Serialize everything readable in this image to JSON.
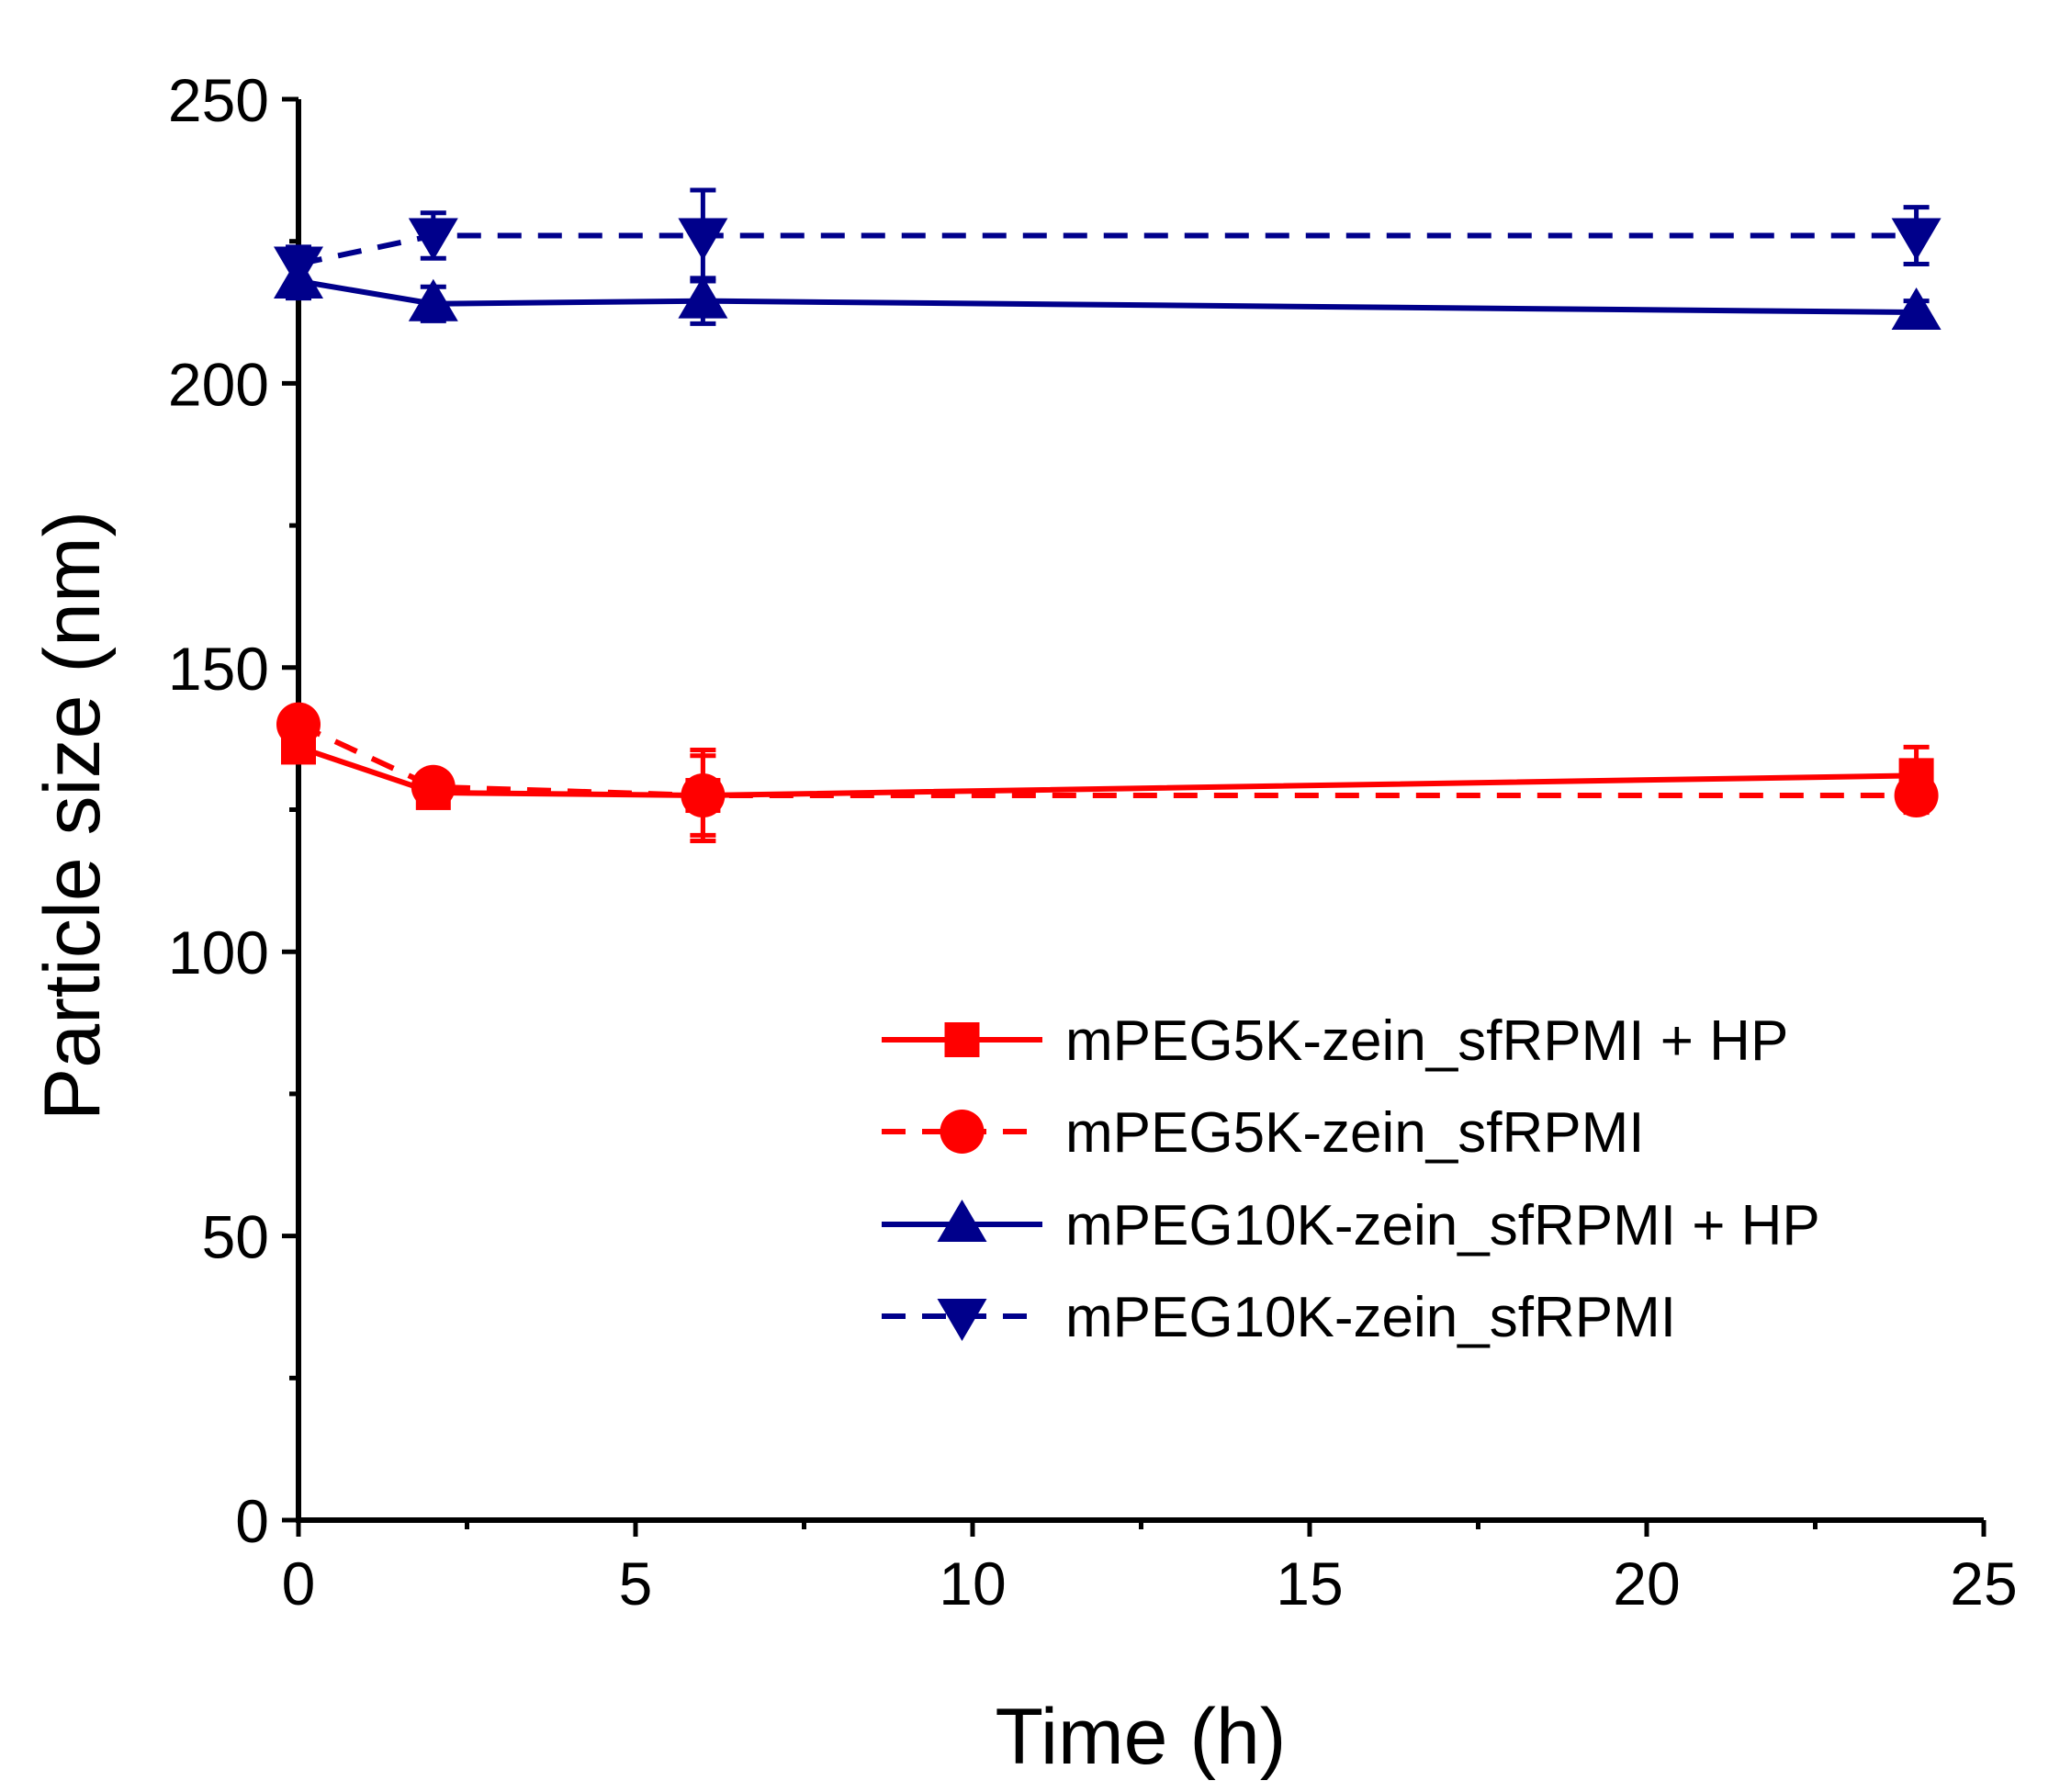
{
  "chart_data": {
    "type": "line",
    "title": "",
    "xlabel": "Time (h)",
    "ylabel": "Particle size (nm)",
    "xlim": [
      0,
      25
    ],
    "ylim": [
      0,
      250
    ],
    "xticks": [
      0,
      5,
      10,
      15,
      20,
      25
    ],
    "yticks": [
      0,
      50,
      100,
      150,
      200,
      250
    ],
    "x_tick_labels": [
      "0",
      "5",
      "10",
      "15",
      "20",
      "25"
    ],
    "y_tick_labels": [
      "0",
      "50",
      "100",
      "150",
      "200",
      "250"
    ],
    "grid": false,
    "legend_position": "lower-right",
    "series": [
      {
        "name": "mPEG5K-zein_sfRPMI + HP",
        "color": "#ff0000",
        "dash": "solid",
        "marker": "square",
        "x": [
          0,
          2,
          6,
          24
        ],
        "y": [
          136,
          128,
          127.5,
          131
        ],
        "err": [
          2,
          2,
          8,
          5
        ]
      },
      {
        "name": "mPEG5K-zein_sfRPMI",
        "color": "#ff0000",
        "dash": "dashed",
        "marker": "circle",
        "x": [
          0,
          2,
          6,
          24
        ],
        "y": [
          140,
          129,
          127.5,
          127.5
        ],
        "err": [
          2,
          2,
          7,
          3
        ]
      },
      {
        "name": "mPEG10K-zein_sfRPMI + HP",
        "color": "#00008b",
        "dash": "solid",
        "marker": "triangle-up",
        "x": [
          0,
          2,
          6,
          24
        ],
        "y": [
          218,
          214,
          214.5,
          212.5
        ],
        "err": [
          3,
          3,
          4,
          2
        ]
      },
      {
        "name": "mPEG10K-zein_sfRPMI",
        "color": "#00008b",
        "dash": "dashed",
        "marker": "triangle-down",
        "x": [
          0,
          2,
          6,
          24
        ],
        "y": [
          221,
          226,
          226,
          226
        ],
        "err": [
          3,
          4,
          8,
          5
        ]
      }
    ]
  }
}
